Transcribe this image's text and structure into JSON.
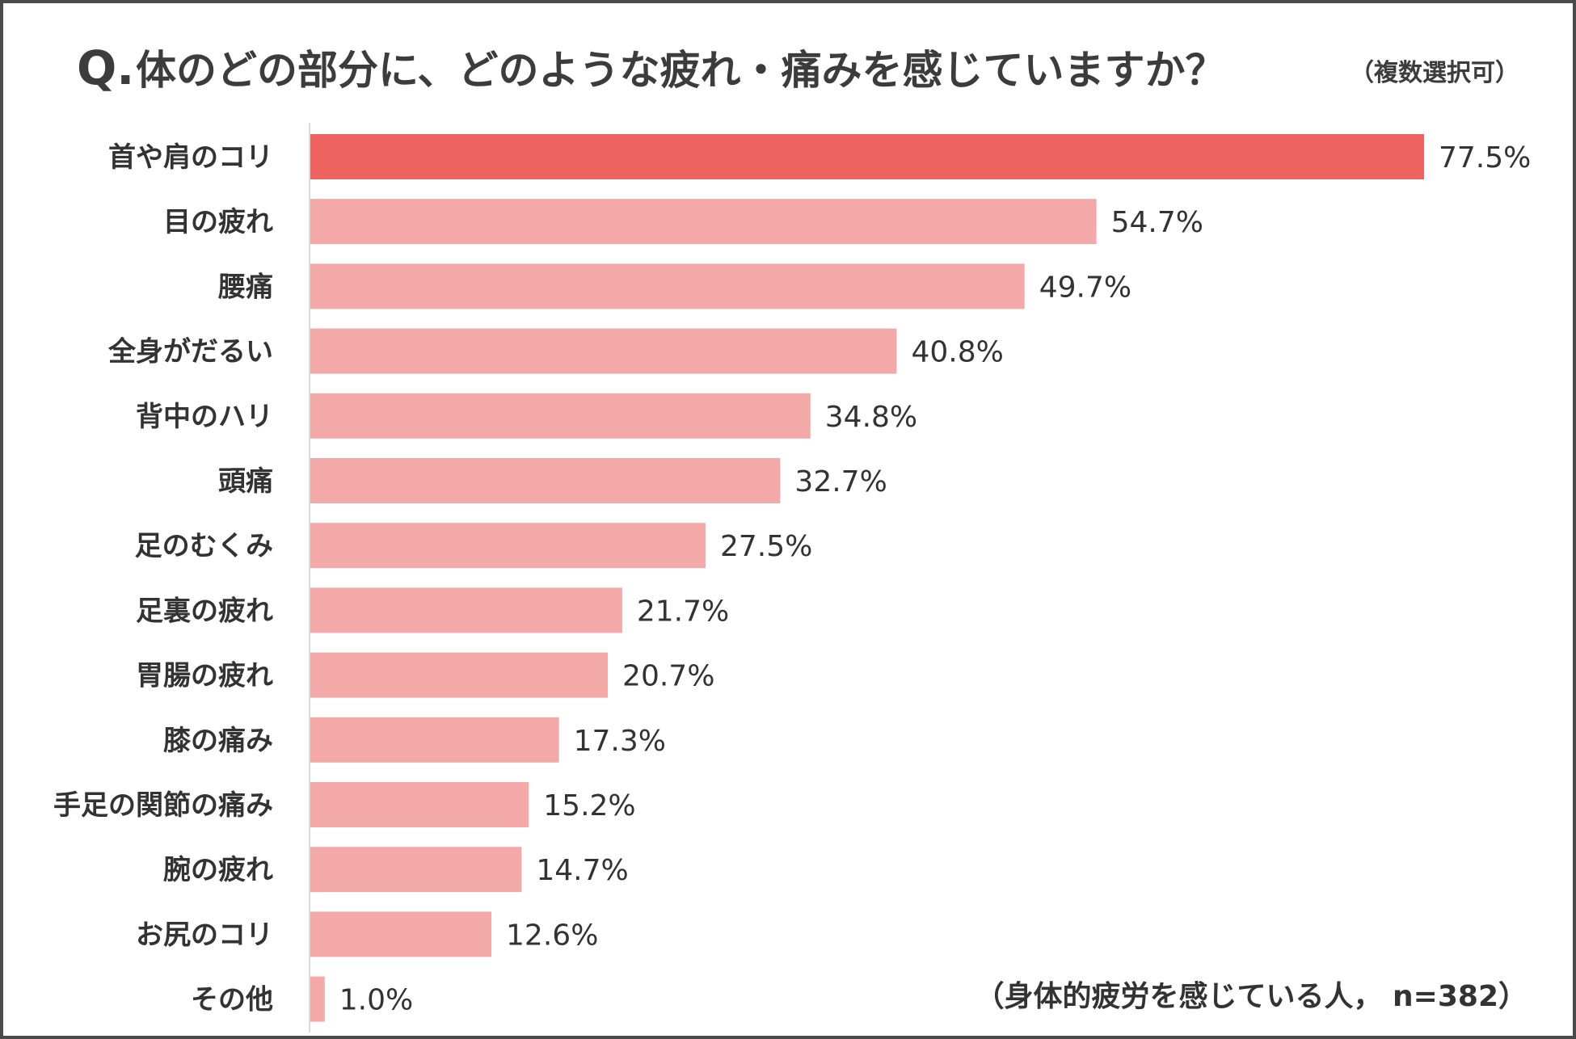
{
  "chart_data": {
    "type": "bar",
    "orientation": "horizontal",
    "title": {
      "prefix": "Q.",
      "main": "体のどの部分に、どのような疲れ・痛みを感じていますか？",
      "sub": "（複数選択可）"
    },
    "categories": [
      "首や肩のコリ",
      "目の疲れ",
      "腰痛",
      "全身がだるい",
      "背中のハリ",
      "頭痛",
      "足のむくみ",
      "足裏の疲れ",
      "胃腸の疲れ",
      "膝の痛み",
      "手足の関節の痛み",
      "腕の疲れ",
      "お尻のコリ",
      "その他"
    ],
    "values": [
      77.5,
      54.7,
      49.7,
      40.8,
      34.8,
      32.7,
      27.5,
      21.7,
      20.7,
      17.3,
      15.2,
      14.7,
      12.6,
      1.0
    ],
    "value_labels": [
      "77.5%",
      "54.7%",
      "49.7%",
      "40.8%",
      "34.8%",
      "32.7%",
      "27.5%",
      "21.7%",
      "20.7%",
      "17.3%",
      "15.2%",
      "14.7%",
      "12.6%",
      "1.0%"
    ],
    "note": "（身体的疲労を感じている人， n=382）",
    "xlim": [
      0,
      77.5
    ],
    "grid": false,
    "colors": {
      "highlight": "#ee6260",
      "bar": "#f2a9a8",
      "axis": "#d9d9d9",
      "text": "#333333",
      "border": "#4a4a4a"
    }
  }
}
